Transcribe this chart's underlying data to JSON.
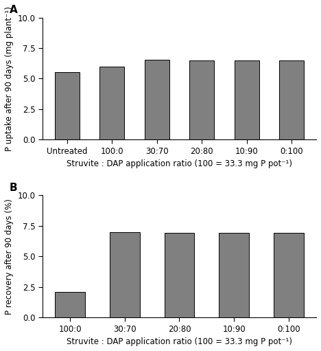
{
  "panel_A": {
    "categories": [
      "Untreated",
      "100:0",
      "30:70",
      "20:80",
      "10:90",
      "0:100"
    ],
    "values": [
      5.5,
      6.0,
      6.55,
      6.5,
      6.5,
      6.5
    ],
    "ylabel": "P uptake after 90 days (mg plant⁻¹)",
    "xlabel": "Struvite : DAP application ratio (100 = 33.3 mg P pot⁻¹)",
    "ylim": [
      0.0,
      10.0
    ],
    "yticks": [
      0.0,
      2.5,
      5.0,
      7.5,
      10.0
    ],
    "label": "A"
  },
  "panel_B": {
    "categories": [
      "100:0",
      "30:70",
      "20:80",
      "10:90",
      "0:100"
    ],
    "values": [
      2.1,
      7.0,
      6.95,
      6.95,
      6.95
    ],
    "ylabel": "P recovery after 90 days (%)",
    "xlabel": "Struvite : DAP application ratio (100 = 33.3 mg P pot⁻¹)",
    "ylim": [
      0.0,
      10.0
    ],
    "yticks": [
      0.0,
      2.5,
      5.0,
      7.5,
      10.0
    ],
    "label": "B"
  },
  "bar_color": "#808080",
  "bar_edgecolor": "#000000",
  "bar_width": 0.55,
  "background_color": "#ffffff",
  "tick_fontsize": 8.5,
  "label_fontsize": 8.5,
  "panel_label_fontsize": 11
}
